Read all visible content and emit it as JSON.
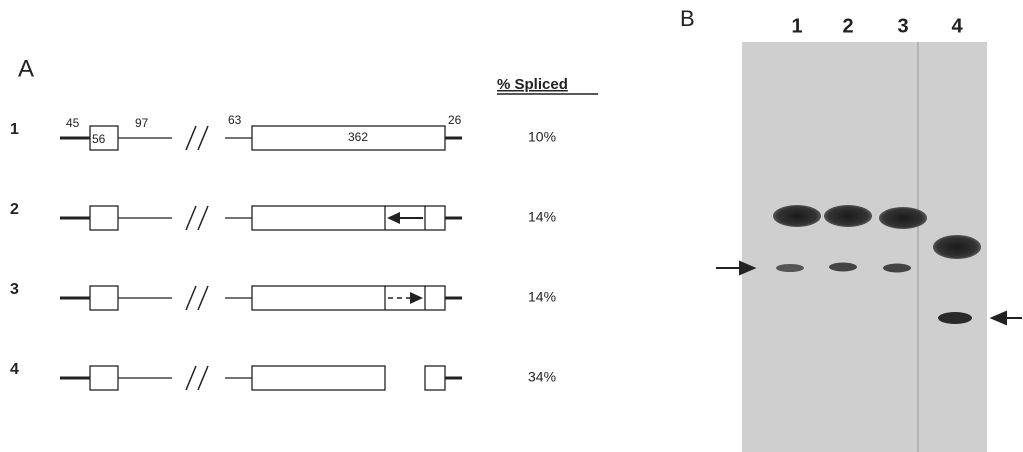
{
  "panel_a": {
    "label": "A",
    "column_header": "% Spliced",
    "segment_lengths": [
      "45",
      "56",
      "97",
      "63",
      "362",
      "26"
    ],
    "constructs": [
      {
        "label": "1",
        "percent_spliced": "10%"
      },
      {
        "label": "2",
        "percent_spliced": "14%"
      },
      {
        "label": "3",
        "percent_spliced": "14%"
      },
      {
        "label": "4",
        "percent_spliced": "34%"
      }
    ]
  },
  "panel_b": {
    "label": "B",
    "lanes": [
      "1",
      "2",
      "3",
      "4"
    ]
  }
}
